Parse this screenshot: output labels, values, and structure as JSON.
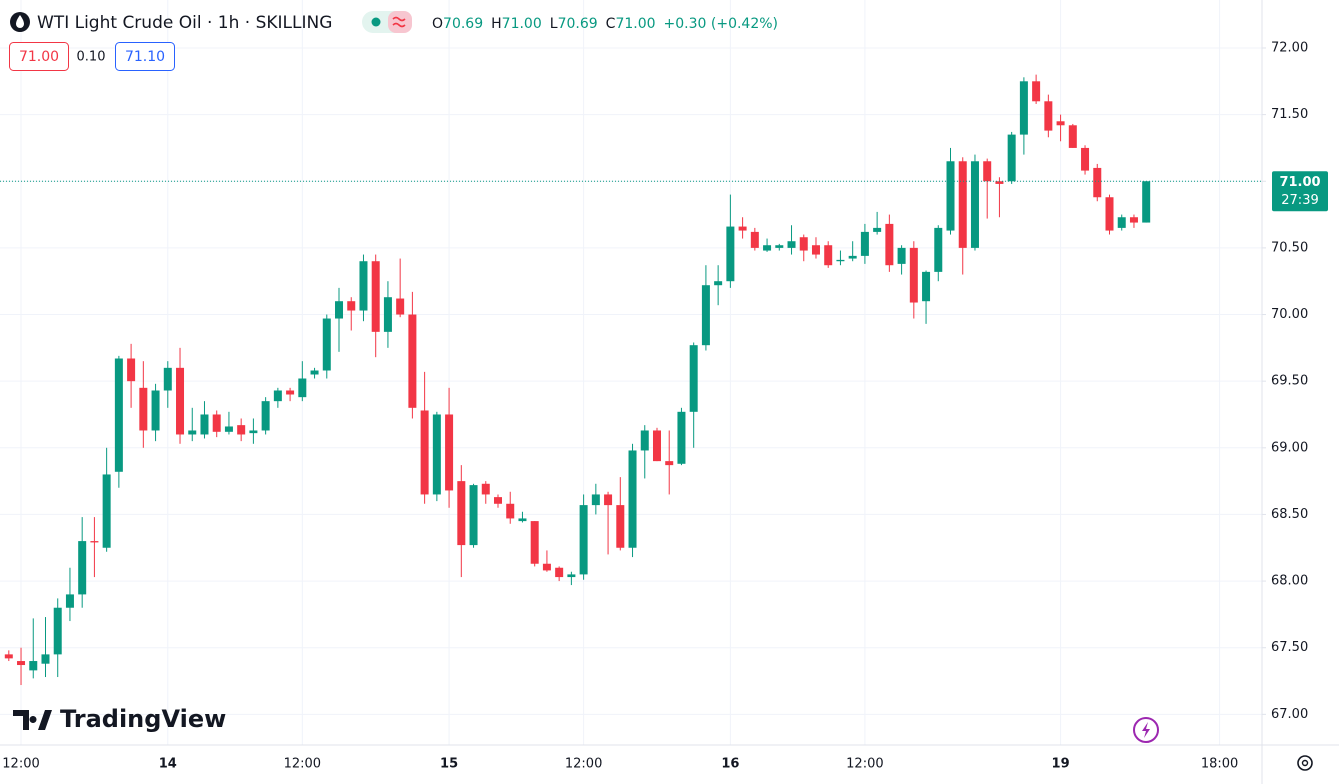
{
  "toolbar": {
    "symbol": "WTI Light Crude Oil · 1h · SKILLING",
    "ohlc": [
      {
        "label": "O",
        "value": "70.69"
      },
      {
        "label": "H",
        "value": "71.00"
      },
      {
        "label": "L",
        "value": "70.69"
      },
      {
        "label": "C",
        "value": "71.00"
      }
    ],
    "change": "+0.30 (+0.42%)",
    "bid": "71.00",
    "spread": "0.10",
    "ask": "71.10",
    "logo": "TradingView"
  },
  "chart_data": {
    "type": "candlestick",
    "up_color": "#089981",
    "down_color": "#f23645",
    "grid": true,
    "categories": [
      null,
      "12:00",
      null,
      null,
      null,
      null,
      null,
      null,
      null,
      null,
      null,
      null,
      null,
      "14",
      null,
      null,
      null,
      null,
      null,
      null,
      null,
      null,
      null,
      null,
      "12:00",
      null,
      null,
      null,
      null,
      null,
      null,
      null,
      null,
      null,
      null,
      null,
      "15",
      null,
      null,
      null,
      null,
      null,
      null,
      null,
      null,
      null,
      null,
      "12:00",
      null,
      null,
      null,
      null,
      null,
      null,
      null,
      null,
      null,
      null,
      null,
      "16",
      null,
      null,
      null,
      null,
      null,
      null,
      null,
      null,
      null,
      null,
      "12:00",
      null,
      null,
      null,
      null,
      null,
      null,
      null,
      null,
      null,
      null,
      null,
      null,
      null,
      null,
      null,
      "19",
      null,
      null,
      null,
      null,
      null,
      null,
      null,
      null,
      null,
      null,
      null,
      null,
      "18:00"
    ],
    "open": [
      67.45,
      67.4,
      67.33,
      67.38,
      67.45,
      67.8,
      67.9,
      68.3,
      68.25,
      68.82,
      69.67,
      69.45,
      69.13,
      69.43,
      69.6,
      69.1,
      69.1,
      69.25,
      69.12,
      69.17,
      69.11,
      69.13,
      69.35,
      69.43,
      69.38,
      69.55,
      69.58,
      69.97,
      70.1,
      70.03,
      70.4,
      69.87,
      70.12,
      70.0,
      69.28,
      68.65,
      69.25,
      68.75,
      68.27,
      68.73,
      68.63,
      68.58,
      68.45,
      68.45,
      68.13,
      68.1,
      68.03,
      68.05,
      68.57,
      68.65,
      68.57,
      68.25,
      68.98,
      69.13,
      68.9,
      68.88,
      69.27,
      69.77,
      70.22,
      70.25,
      70.66,
      70.62,
      70.48,
      70.5,
      70.5,
      70.58,
      70.52,
      70.52,
      70.4,
      70.42,
      70.44,
      70.62,
      70.68,
      70.38,
      70.5,
      70.1,
      70.32,
      70.63,
      71.15,
      70.5,
      71.15,
      71.0,
      71.0,
      71.35,
      71.75,
      71.6,
      71.45,
      71.42,
      71.25,
      71.1,
      70.88,
      70.65,
      70.73,
      70.69,
      null,
      null,
      null,
      null,
      null,
      null
    ],
    "high": [
      67.48,
      67.5,
      67.72,
      67.73,
      67.87,
      68.1,
      68.48,
      68.48,
      69.0,
      69.69,
      69.78,
      69.65,
      69.48,
      69.65,
      69.75,
      69.3,
      69.35,
      69.28,
      69.27,
      69.22,
      69.22,
      69.38,
      69.45,
      69.45,
      69.65,
      69.6,
      70.0,
      70.2,
      70.13,
      70.45,
      70.45,
      70.25,
      70.42,
      70.17,
      69.57,
      69.27,
      69.45,
      68.87,
      68.73,
      68.75,
      68.65,
      68.67,
      68.52,
      68.45,
      68.23,
      68.11,
      68.07,
      68.65,
      68.73,
      68.67,
      68.78,
      69.03,
      69.17,
      69.15,
      69.13,
      69.3,
      69.79,
      70.37,
      70.37,
      70.9,
      70.73,
      70.65,
      70.57,
      70.53,
      70.67,
      70.6,
      70.58,
      70.55,
      70.48,
      70.55,
      70.68,
      70.77,
      70.75,
      70.52,
      70.55,
      70.33,
      70.67,
      71.25,
      71.18,
      71.2,
      71.17,
      71.03,
      71.37,
      71.78,
      71.8,
      71.65,
      71.5,
      71.43,
      71.27,
      71.13,
      70.9,
      70.75,
      70.75,
      71.0,
      null,
      null,
      null,
      null,
      null,
      null
    ],
    "low": [
      67.4,
      67.22,
      67.27,
      67.28,
      67.28,
      67.7,
      67.8,
      68.03,
      68.22,
      68.7,
      69.3,
      69.0,
      69.05,
      69.3,
      69.03,
      69.05,
      69.07,
      69.08,
      69.1,
      69.05,
      69.03,
      69.1,
      69.3,
      69.35,
      69.35,
      69.52,
      69.52,
      69.72,
      69.88,
      69.95,
      69.68,
      69.75,
      69.98,
      69.22,
      68.58,
      68.6,
      68.55,
      68.03,
      68.25,
      68.58,
      68.55,
      68.43,
      68.44,
      68.11,
      68.07,
      68.0,
      67.97,
      68.01,
      68.5,
      68.2,
      68.23,
      68.18,
      68.77,
      68.9,
      68.65,
      68.87,
      69.0,
      69.73,
      70.07,
      70.2,
      70.57,
      70.48,
      70.47,
      70.48,
      70.45,
      70.4,
      70.42,
      70.35,
      70.37,
      70.4,
      70.38,
      70.6,
      70.32,
      70.3,
      69.97,
      69.93,
      70.25,
      70.6,
      70.3,
      70.48,
      70.72,
      70.73,
      70.98,
      71.2,
      71.58,
      71.33,
      71.3,
      71.25,
      71.05,
      70.85,
      70.6,
      70.63,
      70.65,
      70.69,
      null,
      null,
      null,
      null,
      null,
      null
    ],
    "close": [
      67.42,
      67.37,
      67.4,
      67.45,
      67.8,
      67.9,
      68.3,
      68.29,
      68.8,
      69.67,
      69.5,
      69.13,
      69.43,
      69.6,
      69.1,
      69.13,
      69.25,
      69.12,
      69.16,
      69.1,
      69.13,
      69.35,
      69.43,
      69.4,
      69.52,
      69.58,
      69.97,
      70.1,
      70.03,
      70.4,
      69.87,
      70.13,
      70.0,
      69.3,
      68.65,
      69.25,
      68.68,
      68.27,
      68.72,
      68.65,
      68.58,
      68.47,
      68.47,
      68.13,
      68.08,
      68.03,
      68.05,
      68.57,
      68.65,
      68.57,
      68.25,
      68.98,
      69.13,
      68.9,
      68.87,
      69.27,
      69.77,
      70.22,
      70.25,
      70.66,
      70.63,
      70.5,
      70.52,
      70.52,
      70.55,
      70.48,
      70.45,
      70.37,
      70.41,
      70.44,
      70.62,
      70.65,
      70.37,
      70.5,
      70.09,
      70.32,
      70.65,
      71.15,
      70.5,
      71.15,
      71.0,
      70.98,
      71.35,
      71.75,
      71.6,
      71.38,
      71.42,
      71.25,
      71.08,
      70.88,
      70.63,
      70.73,
      70.69,
      71.0,
      null,
      null,
      null,
      null,
      null,
      null
    ],
    "ylim": [
      66.77,
      72.36
    ],
    "yticks": [
      {
        "value": 67,
        "label": "67.00"
      },
      {
        "value": 67.5,
        "label": "67.50"
      },
      {
        "value": 68,
        "label": "68.00"
      },
      {
        "value": 68.5,
        "label": "68.50"
      },
      {
        "value": 69,
        "label": "69.00"
      },
      {
        "value": 69.5,
        "label": "69.50"
      },
      {
        "value": 70,
        "label": "70.00"
      },
      {
        "value": 70.5,
        "label": "70.50"
      },
      {
        "value": 71,
        "label": "71.00"
      },
      {
        "value": 71.5,
        "label": "71.50"
      },
      {
        "value": 72,
        "label": "72.00"
      }
    ],
    "last_price": 71,
    "last_price_label": "71.00",
    "countdown": "27:39"
  }
}
